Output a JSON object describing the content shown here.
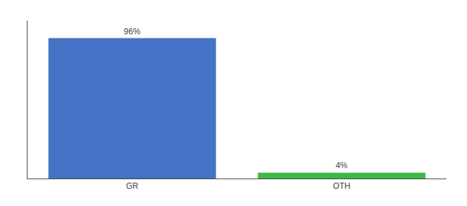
{
  "chart_data": {
    "type": "bar",
    "categories": [
      "GR",
      "OTH"
    ],
    "values": [
      96,
      4
    ],
    "value_labels": [
      "96%",
      "4%"
    ],
    "data_labels": true,
    "colors": [
      "#4472c4",
      "#3cb944"
    ],
    "ylim": [
      0,
      108
    ],
    "tick_labels": "x",
    "grid": false
  }
}
